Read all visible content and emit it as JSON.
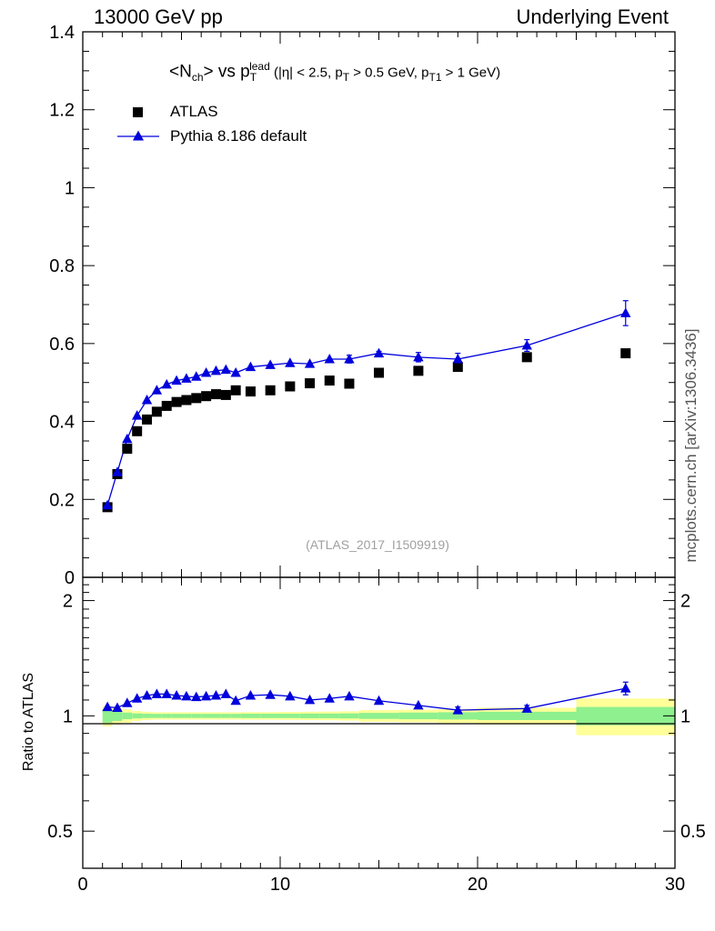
{
  "header": {
    "left": "13000 GeV pp",
    "right": "Underlying Event"
  },
  "side_text": "mcplots.cern.ch [arXiv:1306.3436]",
  "title": {
    "main": "<N",
    "main_sub": "ch",
    "main_rest": "> vs p",
    "pt_sub": "T",
    "pt_sup": "lead",
    "cuts_a": " (|η| < 2.5, p",
    "cuts_sub1": "T",
    "cuts_b": " > 0.5 GeV, p",
    "cuts_sub2": "T1",
    "cuts_c": " > 1 GeV)"
  },
  "legend": {
    "atlas": "ATLAS",
    "pythia": "Pythia 8.186 default"
  },
  "watermark": "(ATLAS_2017_I1509919)",
  "ratio_ylabel": "Ratio to ATLAS",
  "colors": {
    "mc": "#0000dd",
    "data": "#000000",
    "band_inner": "#8ef08e",
    "band_outer": "#ffff99",
    "watermark": "#a0a0a0"
  },
  "chart_data": {
    "type": "scatter",
    "xlim": [
      0,
      30
    ],
    "main_ylim": [
      0,
      1.4
    ],
    "main_y_ticks": [
      "0",
      "0.2",
      "0.4",
      "0.6",
      "0.8",
      "1",
      "1.2",
      "1.4"
    ],
    "ratio_ylim": [
      0.4,
      2.3
    ],
    "ratio_y_ticks": [
      "0.5",
      "1",
      "2"
    ],
    "x_ticks": [
      "0",
      "10",
      "20",
      "30"
    ],
    "x": [
      1.25,
      1.75,
      2.25,
      2.75,
      3.25,
      3.75,
      4.25,
      4.75,
      5.25,
      5.75,
      6.25,
      6.75,
      7.25,
      7.75,
      8.5,
      9.5,
      10.5,
      11.5,
      12.5,
      13.5,
      15,
      17,
      19,
      22.5,
      27.5
    ],
    "series": [
      {
        "name": "ATLAS",
        "marker": "square",
        "values": [
          0.18,
          0.265,
          0.33,
          0.375,
          0.405,
          0.425,
          0.44,
          0.45,
          0.455,
          0.46,
          0.465,
          0.47,
          0.468,
          0.48,
          0.477,
          0.48,
          0.49,
          0.498,
          0.505,
          0.497,
          0.525,
          0.53,
          0.54,
          0.565,
          0.575
        ]
      },
      {
        "name": "Pythia 8.186 default",
        "marker": "triangle",
        "values": [
          0.185,
          0.27,
          0.355,
          0.415,
          0.455,
          0.48,
          0.495,
          0.505,
          0.51,
          0.515,
          0.525,
          0.53,
          0.533,
          0.525,
          0.54,
          0.545,
          0.55,
          0.548,
          0.56,
          0.56,
          0.575,
          0.565,
          0.56,
          0.595,
          0.678
        ],
        "errors": [
          0,
          0,
          0,
          0,
          0,
          0,
          0,
          0,
          0,
          0,
          0,
          0,
          0,
          0,
          0,
          0,
          0,
          0,
          0,
          0.01,
          0.005,
          0.012,
          0.015,
          0.015,
          0.032
        ],
        "ratio": [
          1.055,
          1.05,
          1.08,
          1.11,
          1.13,
          1.14,
          1.14,
          1.13,
          1.125,
          1.12,
          1.125,
          1.13,
          1.14,
          1.095,
          1.13,
          1.135,
          1.125,
          1.1,
          1.11,
          1.125,
          1.095,
          1.065,
          1.035,
          1.045,
          1.18
        ],
        "ratio_errors": [
          0,
          0,
          0,
          0,
          0,
          0,
          0,
          0,
          0,
          0,
          0,
          0,
          0,
          0,
          0,
          0,
          0,
          0,
          0,
          0,
          0,
          0,
          0.02,
          0.02,
          0.045
        ]
      }
    ],
    "uncertainty_bands": {
      "bin_edges": [
        1,
        1.5,
        2,
        2.5,
        3,
        3.5,
        4,
        4.5,
        5,
        5.5,
        6,
        6.5,
        7,
        7.5,
        8,
        9,
        10,
        11,
        12,
        13,
        14,
        16,
        18,
        20,
        25,
        30
      ],
      "inner": [
        0.04,
        0.03,
        0.02,
        0.015,
        0.013,
        0.012,
        0.012,
        0.012,
        0.012,
        0.012,
        0.012,
        0.012,
        0.012,
        0.012,
        0.013,
        0.013,
        0.013,
        0.014,
        0.014,
        0.015,
        0.018,
        0.02,
        0.022,
        0.025,
        0.055
      ],
      "outer": [
        0.06,
        0.05,
        0.04,
        0.03,
        0.025,
        0.022,
        0.022,
        0.022,
        0.022,
        0.022,
        0.022,
        0.022,
        0.022,
        0.022,
        0.023,
        0.023,
        0.024,
        0.025,
        0.026,
        0.028,
        0.035,
        0.038,
        0.042,
        0.05,
        0.11
      ]
    }
  }
}
